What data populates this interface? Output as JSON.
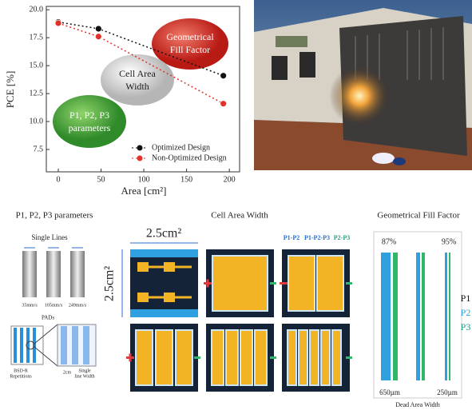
{
  "chart_data": {
    "type": "line",
    "xlabel": "Area [cm²]",
    "ylabel": "PCE [%]",
    "xlim": [
      -14,
      212
    ],
    "ylim": [
      5.5,
      20.3
    ],
    "xticks": [
      0,
      50,
      100,
      150,
      200
    ],
    "yticks": [
      {
        "value": 20,
        "label": "20.0"
      },
      17.5,
      {
        "value": 15,
        "label": "15.0"
      },
      12.5,
      {
        "value": 10,
        "label": "10.0"
      },
      7.5
    ],
    "series": [
      {
        "name": "Optimized Design",
        "color": "#111111",
        "x": [
          0,
          47,
          193
        ],
        "values": [
          18.9,
          18.3,
          14.1
        ]
      },
      {
        "name": "Non-Optimized Design",
        "color": "#e0322a",
        "x": [
          0,
          47,
          193
        ],
        "values": [
          18.8,
          17.6,
          11.6
        ]
      }
    ],
    "annotations": [
      [
        "Geometrical",
        "Fill Factor"
      ],
      [
        "Cell Area",
        "Width"
      ],
      [
        "P1, P2, P3",
        "parameters"
      ]
    ],
    "grid": false
  },
  "panels": {
    "parameters": {
      "title": "P1, P2, P3 parameters",
      "single_lines": "Single Lines",
      "speeds": [
        "35mm/s",
        "105mm/s",
        "249mm/s"
      ],
      "pads": "PADs",
      "repetitions": [
        "BSD-R",
        "Repetitions"
      ],
      "width": [
        "Single",
        "line Width"
      ],
      "scale": "2cm"
    },
    "cell_area": {
      "title": "Cell Area Width",
      "size_h": "2.5cm²",
      "size_v": "2.5cm²",
      "labels": [
        "P1-P2",
        "P1-P2-P3",
        "P2-P3"
      ]
    },
    "fill_factor": {
      "title": "Geometrical Fill Factor",
      "left_pct": "87%",
      "right_pct": "95%",
      "layers": [
        "P1",
        "P2",
        "P3"
      ],
      "left_width": "650µm",
      "right_width": "250µm",
      "footer": "Dead Area Width"
    }
  }
}
